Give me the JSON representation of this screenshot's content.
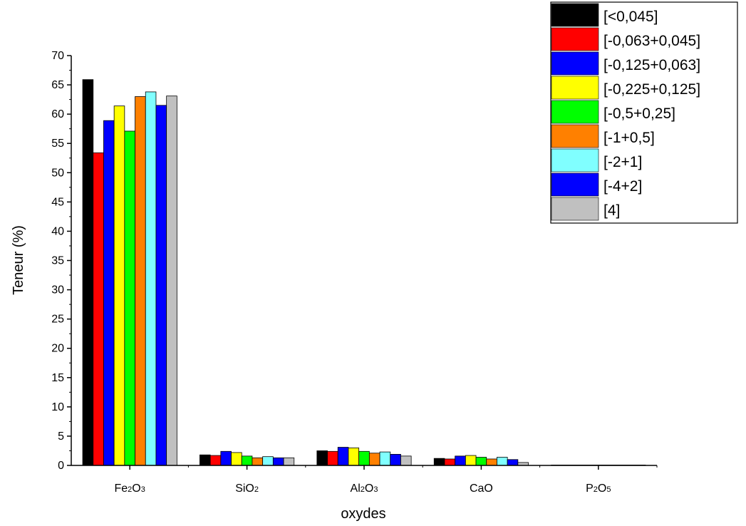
{
  "chart_data": {
    "type": "bar",
    "xlabel": "oxydes",
    "ylabel": "Teneur (%)",
    "ylim": [
      0,
      70
    ],
    "yticks": [
      0,
      5,
      10,
      15,
      20,
      25,
      30,
      35,
      40,
      45,
      50,
      55,
      60,
      65,
      70
    ],
    "legend_position": "top-right",
    "categories": [
      {
        "label": "Fe",
        "sub1": "2",
        "mid": "O",
        "sub2": "3"
      },
      {
        "label": "SiO",
        "sub1": "2",
        "mid": "",
        "sub2": ""
      },
      {
        "label": "Al",
        "sub1": "2",
        "mid": "O",
        "sub2": "3"
      },
      {
        "label": "CaO",
        "sub1": "",
        "mid": "",
        "sub2": ""
      },
      {
        "label": "P",
        "sub1": "2",
        "mid": "O",
        "sub2": "5"
      }
    ],
    "series": [
      {
        "name": "[<0,045]",
        "color": "#000000",
        "values": [
          65.9,
          1.8,
          2.5,
          1.2,
          0.05
        ]
      },
      {
        "name": "[-0,063+0,045]",
        "color": "#ff0000",
        "values": [
          53.4,
          1.7,
          2.4,
          1.1,
          0.05
        ]
      },
      {
        "name": "[-0,125+0,063]",
        "color": "#0000ff",
        "values": [
          58.9,
          2.4,
          3.1,
          1.6,
          0.05
        ]
      },
      {
        "name": "[-0,225+0,125]",
        "color": "#ffff00",
        "values": [
          61.4,
          2.2,
          3.0,
          1.7,
          0.05
        ]
      },
      {
        "name": "[-0,5+0,25]",
        "color": "#00ff00",
        "values": [
          57.1,
          1.6,
          2.4,
          1.4,
          0.05
        ]
      },
      {
        "name": "[-1+0,5]",
        "color": "#ff8000",
        "values": [
          63.0,
          1.3,
          2.1,
          1.1,
          0.05
        ]
      },
      {
        "name": "[-2+1]",
        "color": "#80ffff",
        "values": [
          63.8,
          1.5,
          2.3,
          1.4,
          0.05
        ]
      },
      {
        "name": "[-4+2]",
        "color": "#0000ff",
        "values": [
          61.5,
          1.3,
          1.9,
          1.0,
          0.05
        ]
      },
      {
        "name": "[4]",
        "color": "#c0c0c0",
        "values": [
          63.1,
          1.3,
          1.6,
          0.5,
          0.05
        ]
      }
    ]
  }
}
